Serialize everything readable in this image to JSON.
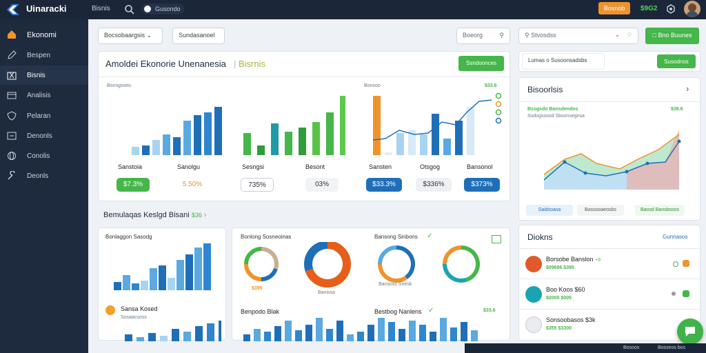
{
  "app": {
    "brand": "Uinaracki",
    "nav": "Bisnis",
    "pill": "Gusondo",
    "cta": "Bosnob",
    "metric": "$9G2"
  },
  "sidebar": {
    "items": [
      "Ekonomi",
      "Bespen",
      "Bisnis",
      "Analisis",
      "Pelaran",
      "Denonls",
      "Conolis",
      "Deonls"
    ]
  },
  "filters": {
    "select1": "Bocsobaargsis",
    "select2": "Sundasanoel",
    "search": "Boeorg",
    "search2": "Stvosdss",
    "apply": "Bno Buunes"
  },
  "summary": {
    "title": "Amoldei Ekonorie Unenanesia",
    "accent": "Bisrnis",
    "action": "Ssndoonces",
    "panel1": {
      "l1": "Sanstoia",
      "l2": "Sanolgu",
      "p1": "$7.3%",
      "p2": "5.50%",
      "head": "Bonsgsoeo"
    },
    "panel2": {
      "l1": "Sesngsi",
      "l2": "Besont",
      "p1": "735%",
      "p2": "03%"
    },
    "panel3": {
      "l1": "Sansten",
      "l2": "Otsgog",
      "l3": "Bansonol",
      "p1": "$33.3%",
      "p2": "$336%",
      "p3": "$373%",
      "top": "$33.6",
      "head": "Bonsoo"
    }
  },
  "sec2": {
    "title": "Bemulaqas Keslgd Bisani",
    "badge": "$36",
    "p1": {
      "head": "Bonlaggon Sasodg",
      "sub": "Sansa Kosed",
      "sub2": "Sosaacsoss"
    },
    "p2": {
      "head": "Bonlong Sosneoinas",
      "label": "$395",
      "label2": "Banissa",
      "sub": "Benpodo Blak"
    },
    "p3": {
      "head": "Bansong Sinbons",
      "label": "Bansoss Snesk",
      "sub": "Bestbog Nanlens",
      "value": "$33.6"
    }
  },
  "right": {
    "filter": "Lumas o Susoonsadsbs",
    "btn": "Susodnos",
    "trend": "Bisoorlsis",
    "legend_g": "Bssgsdo Bansdendos",
    "value": "$38.6",
    "legend_sub": "Ssdogsoosd Sbsonsegnsa",
    "chips": [
      "Saidsoasa",
      "Bassooaeosbs",
      "Baosd Bansbssos"
    ],
    "list": {
      "title": "Diokns",
      "link": "Gunnasos",
      "items": [
        {
          "t": "Borsobe Banslon",
          "g": "+9",
          "s": "$09686 $395"
        },
        {
          "t": "Boo Koos $60",
          "g": "",
          "s": "$2000 $005"
        },
        {
          "t": "Sonsoobasos $3k",
          "g": "",
          "s": "$355 $3300"
        }
      ]
    }
  },
  "footer": {
    "a": "Bosoos",
    "b": "Bosseos bos"
  },
  "colors": {
    "green": "#45b649",
    "blue": "#1f6fb8",
    "orange": "#f0932b",
    "navy": "#1b2638"
  }
}
